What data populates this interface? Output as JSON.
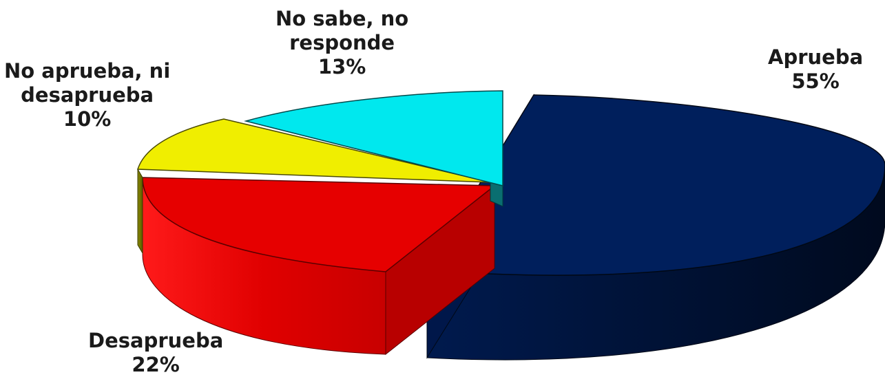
{
  "chart_data": {
    "type": "pie",
    "style": "3d-exploded",
    "legend": "none",
    "title": "",
    "slices": [
      {
        "label_lines": [
          "Aprueba"
        ],
        "percent_label": "55%",
        "value": 55,
        "color": "#001f5c"
      },
      {
        "label_lines": [
          "Desaprueba"
        ],
        "percent_label": "22%",
        "value": 22,
        "color": "#e60000"
      },
      {
        "label_lines": [
          "No aprueba, ni",
          "desaprueba"
        ],
        "percent_label": "10%",
        "value": 10,
        "color": "#f0ee00"
      },
      {
        "label_lines": [
          "No sabe, no",
          "responde"
        ],
        "percent_label": "13%",
        "value": 13,
        "color": "#00e8ee"
      }
    ]
  }
}
